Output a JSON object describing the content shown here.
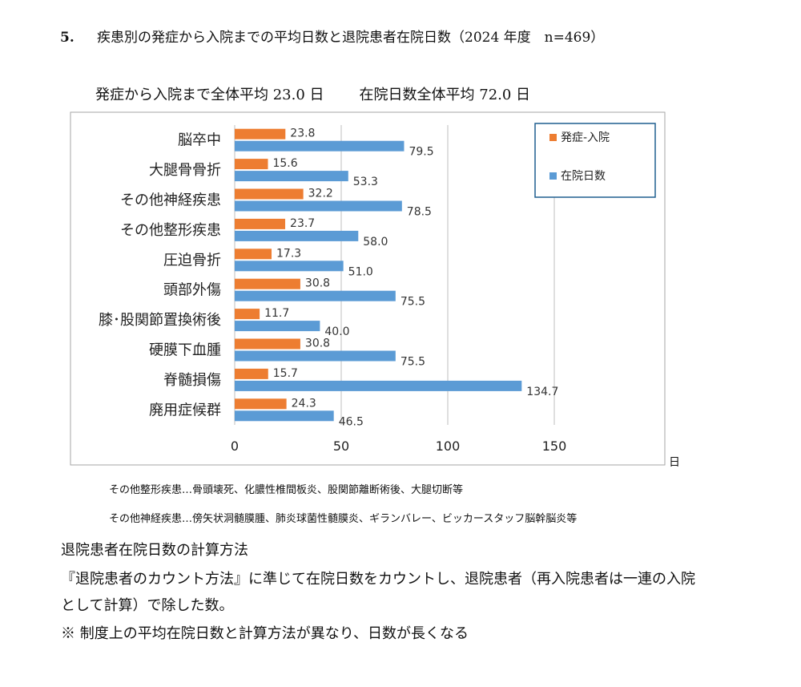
{
  "heading": {
    "number": "5.",
    "text": "疾患別の発症から入院までの平均日数と退院患者在院日数（2024 年度　n=469）"
  },
  "subtitle": {
    "onset_avg": "発症から入院まで全体平均 23.0 日",
    "stay_avg": "在院日数全体平均 72.0 日"
  },
  "chart_data": {
    "type": "bar",
    "orientation": "horizontal",
    "categories": [
      "脳卒中",
      "大腿骨骨折",
      "その他神経疾患",
      "その他整形疾患",
      "圧迫骨折",
      "頭部外傷",
      "膝･股関節置換術後",
      "硬膜下血腫",
      "脊髄損傷",
      "廃用症候群"
    ],
    "series": [
      {
        "name": "発症-入院",
        "color": "#ED7D31",
        "values": [
          23.8,
          15.6,
          32.2,
          23.7,
          17.3,
          30.8,
          11.7,
          30.8,
          15.7,
          24.3
        ],
        "labels": [
          "23.8",
          "15.6",
          "32.2",
          "23.7",
          "17.3",
          "30.8",
          "11.7",
          "30.8",
          "15.7",
          "24.3"
        ]
      },
      {
        "name": "在院日数",
        "color": "#5B9BD5",
        "values": [
          79.5,
          53.3,
          78.5,
          58.0,
          51.0,
          75.5,
          40.0,
          75.5,
          134.7,
          46.5
        ],
        "labels": [
          "79.5",
          "53.3",
          "78.5",
          "58.0",
          "51.0",
          "75.5",
          "40.0",
          "75.5",
          "134.7",
          "46.5"
        ]
      }
    ],
    "xlim": [
      0,
      150
    ],
    "xticks": [
      "0",
      "50",
      "100",
      "150"
    ],
    "xunit": "日",
    "grid": true,
    "legend": "top-right"
  },
  "notes": [
    "その他整形疾患…骨頭壊死、化膿性椎間板炎、股関節離断術後、大腿切断等",
    "その他神経疾患…傍矢状洞髄膜腫、肺炎球菌性髄膜炎、ギランバレー、ビッカースタッフ脳幹脳炎等"
  ],
  "method": {
    "title": "退院患者在院日数の計算方法",
    "line1": "『退院患者のカウント方法』に準じて在院日数をカウントし、退院患者（再入院患者は一連の入院",
    "line2": "として計算）で除した数。",
    "line3": "※  制度上の平均在院日数と計算方法が異なり、日数が長くなる"
  }
}
